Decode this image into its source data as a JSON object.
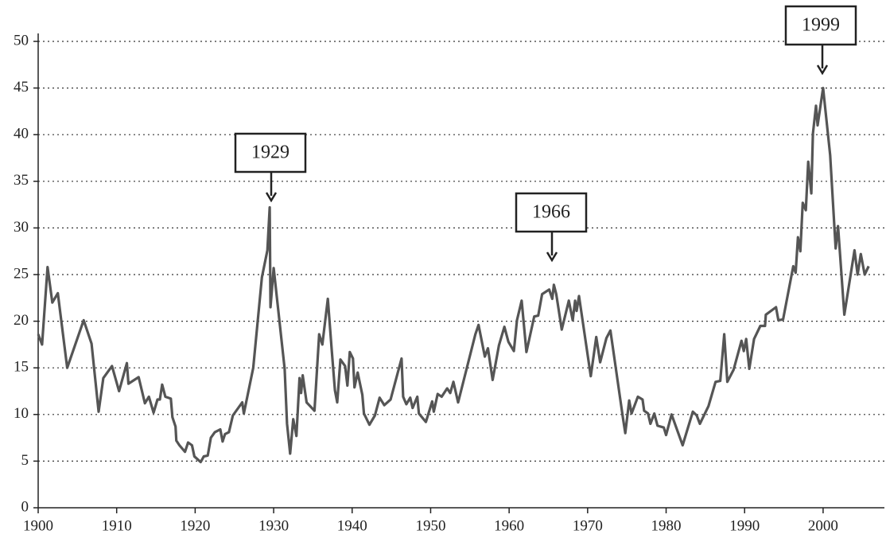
{
  "chart_data": {
    "type": "line",
    "x": [
      1900,
      1900.5,
      1901.2,
      1901.8,
      1902.5,
      1903.7,
      1905.8,
      1906.8,
      1907.7,
      1908.3,
      1909.4,
      1910.3,
      1911.3,
      1911.5,
      1912.8,
      1913.6,
      1914.1,
      1914.7,
      1915.2,
      1915.5,
      1915.8,
      1916.2,
      1916.9,
      1917.1,
      1917.5,
      1917.6,
      1918,
      1918.7,
      1919.1,
      1919.6,
      1919.9,
      1920.7,
      1921.1,
      1921.6,
      1922,
      1922.5,
      1923.2,
      1923.5,
      1923.8,
      1924.3,
      1924.8,
      1926,
      1926.2,
      1927.4,
      1928.5,
      1929.2,
      1929.5,
      1929.6,
      1930,
      1931.4,
      1931.7,
      1932.1,
      1932.5,
      1932.9,
      1933.3,
      1933.5,
      1933.7,
      1934.2,
      1935.2,
      1935.8,
      1936.2,
      1936.9,
      1937.4,
      1937.8,
      1938.1,
      1938.5,
      1939.1,
      1939.4,
      1939.7,
      1940.1,
      1940.3,
      1940.7,
      1941.3,
      1941.5,
      1942.2,
      1942.9,
      1943.5,
      1944.1,
      1944.9,
      1946.3,
      1946.5,
      1946.9,
      1947.4,
      1947.7,
      1948.3,
      1948.5,
      1949.4,
      1950.2,
      1950.4,
      1950.9,
      1951.4,
      1952.1,
      1952.5,
      1952.9,
      1953.5,
      1955.7,
      1956.1,
      1956.9,
      1957.3,
      1957.9,
      1958.7,
      1959.4,
      1959.9,
      1960.6,
      1961,
      1961.6,
      1962.2,
      1963.2,
      1963.7,
      1964.2,
      1965.1,
      1965.5,
      1965.7,
      1966,
      1966.7,
      1967.6,
      1968.1,
      1968.4,
      1968.6,
      1968.9,
      1970.4,
      1971.1,
      1971.6,
      1972.4,
      1972.9,
      1974.5,
      1974.8,
      1975.3,
      1975.6,
      1976.4,
      1977,
      1977.2,
      1977.7,
      1978,
      1978.5,
      1978.9,
      1979.7,
      1980,
      1980.7,
      1982.1,
      1983.4,
      1983.9,
      1984.3,
      1985.4,
      1986.3,
      1986.9,
      1987.4,
      1987.8,
      1988.6,
      1989.6,
      1989.9,
      1990.2,
      1990.6,
      1991.2,
      1992,
      1992.6,
      1992.7,
      1994,
      1994.3,
      1994.9,
      1996.2,
      1996.5,
      1996.8,
      1997.1,
      1997.4,
      1997.8,
      1998.1,
      1998.5,
      1998.7,
      1999.1,
      1999.3,
      2000,
      2000.9,
      2001.6,
      2001.9,
      2002.7,
      2004,
      2004.4,
      2004.8,
      2005.3,
      2005.8
    ],
    "values": [
      18.6,
      17.5,
      25.8,
      22,
      23,
      15,
      20.1,
      17.6,
      10.3,
      13.9,
      15.2,
      12.5,
      15.5,
      13.3,
      14,
      11.2,
      11.9,
      10.2,
      11.6,
      11.6,
      13.2,
      11.9,
      11.7,
      9.7,
      8.7,
      7.2,
      6.7,
      6,
      7,
      6.7,
      5.5,
      4.9,
      5.5,
      5.6,
      7.5,
      8.1,
      8.4,
      7.1,
      7.9,
      8.1,
      9.9,
      11.3,
      10.1,
      15,
      24.7,
      27.6,
      32.2,
      21.5,
      25.7,
      14.9,
      9,
      5.8,
      9.5,
      7.7,
      13.9,
      12.3,
      14.2,
      11.3,
      10.4,
      18.6,
      17.5,
      22.4,
      16.9,
      12.6,
      11.3,
      15.9,
      15.2,
      13.1,
      16.7,
      16,
      12.9,
      14.5,
      12.1,
      10.1,
      8.9,
      9.9,
      11.8,
      11,
      11.6,
      16,
      11.9,
      11.1,
      11.8,
      10.7,
      11.9,
      10.1,
      9.2,
      11.4,
      10.3,
      12.2,
      11.9,
      12.8,
      12.3,
      13.5,
      11.3,
      18.6,
      19.6,
      16.2,
      17.1,
      13.7,
      17.4,
      19.4,
      17.8,
      16.8,
      20.1,
      22.2,
      16.7,
      20.5,
      20.6,
      22.9,
      23.4,
      22.4,
      23.9,
      22.9,
      19.1,
      22.2,
      20.1,
      22.2,
      21.1,
      22.7,
      14.1,
      18.3,
      15.6,
      18.2,
      19,
      9.6,
      8,
      11.5,
      10.1,
      11.9,
      11.6,
      10.4,
      10.1,
      9,
      10.1,
      8.8,
      8.6,
      7.8,
      10,
      6.7,
      10.3,
      9.9,
      9,
      10.9,
      13.5,
      13.6,
      18.6,
      13.5,
      14.8,
      17.9,
      16.8,
      18.1,
      14.9,
      18.1,
      19.5,
      19.5,
      20.7,
      21.5,
      20.1,
      20.2,
      25.9,
      25.2,
      29,
      27.5,
      32.7,
      31.9,
      37.1,
      33.7,
      40.1,
      43.1,
      41,
      45,
      37.8,
      27.8,
      30.2,
      20.7,
      27.6,
      25,
      27.2,
      25,
      25.9
    ],
    "color": "#555555",
    "xlim": [
      1900,
      2007
    ],
    "xticks": [
      1900,
      1910,
      1920,
      1930,
      1940,
      1950,
      1960,
      1970,
      1980,
      1990,
      2000
    ],
    "ylim": [
      0,
      50
    ],
    "yticks": [
      0,
      5,
      10,
      15,
      20,
      25,
      30,
      35,
      40,
      45,
      50
    ],
    "grid": true,
    "annotations": [
      "1929",
      "1966",
      "1999"
    ]
  }
}
